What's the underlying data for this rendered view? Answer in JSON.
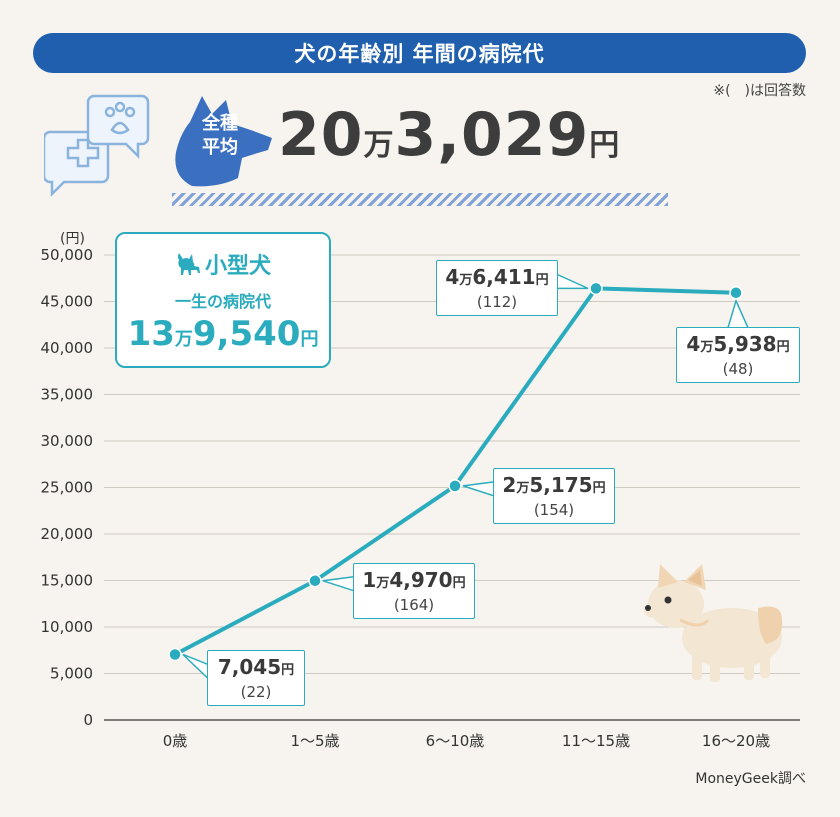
{
  "title": "犬の年齢別 年間の病院代",
  "note": "※(　)は回答数",
  "badge": {
    "line1": "全種",
    "line2": "平均"
  },
  "total": {
    "num1": "20",
    "unit1": "万",
    "num2": "3,029",
    "unit2": "円"
  },
  "unit_label": "(円)",
  "small_dog": {
    "heading": "小型犬",
    "subtitle": "一生の病院代",
    "num1": "13",
    "unit1": "万",
    "num2": "9,540",
    "unit2": "円"
  },
  "source": "MoneyGeek調べ",
  "colors": {
    "accent": "#2aacbe",
    "title_bg": "#1f5fad",
    "background": "#f7f4ef"
  },
  "chart_data": {
    "type": "line",
    "categories": [
      "0歳",
      "1〜5歳",
      "6〜10歳",
      "11〜15歳",
      "16〜20歳"
    ],
    "values": [
      7045,
      14970,
      25175,
      46411,
      45938
    ],
    "ylim": [
      0,
      50000
    ],
    "yticks": [
      "0",
      "5,000",
      "10,000",
      "15,000",
      "20,000",
      "25,000",
      "30,000",
      "35,000",
      "40,000",
      "45,000",
      "50,000"
    ],
    "grid": true,
    "labels": [
      {
        "pre": "",
        "man": "",
        "num": "7,045",
        "yen": "円",
        "count": "(22)"
      },
      {
        "pre": "1",
        "man": "万",
        "num": "4,970",
        "yen": "円",
        "count": "(164)"
      },
      {
        "pre": "2",
        "man": "万",
        "num": "5,175",
        "yen": "円",
        "count": "(154)"
      },
      {
        "pre": "4",
        "man": "万",
        "num": "6,411",
        "yen": "円",
        "count": "(112)"
      },
      {
        "pre": "4",
        "man": "万",
        "num": "5,938",
        "yen": "円",
        "count": "(48)"
      }
    ]
  }
}
